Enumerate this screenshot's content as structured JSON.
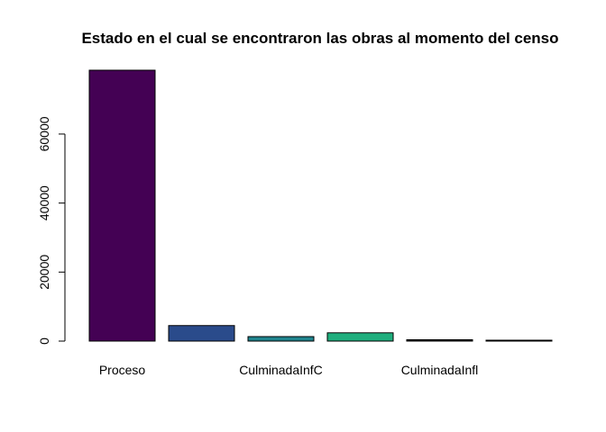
{
  "chart_data": {
    "type": "bar",
    "title": "Estado en el cual se encontraron las obras al momento del censo",
    "xlabel": "",
    "ylabel": "",
    "categories": [
      "Proceso",
      "",
      "CulminadaInfC",
      "",
      "CulminadaInfl",
      ""
    ],
    "values": [
      78500,
      4500,
      1300,
      2400,
      400,
      150
    ],
    "colors": [
      "#440154",
      "#2A4B8B",
      "#20858E",
      "#1FAE7D",
      "#1A1A1A",
      "#999999"
    ],
    "ylim": [
      0,
      78500
    ],
    "yticks": [
      0,
      20000,
      40000,
      60000
    ],
    "ytick_labels": [
      "0",
      "20000",
      "40000",
      "60000"
    ],
    "grid": false,
    "legend": "none"
  }
}
